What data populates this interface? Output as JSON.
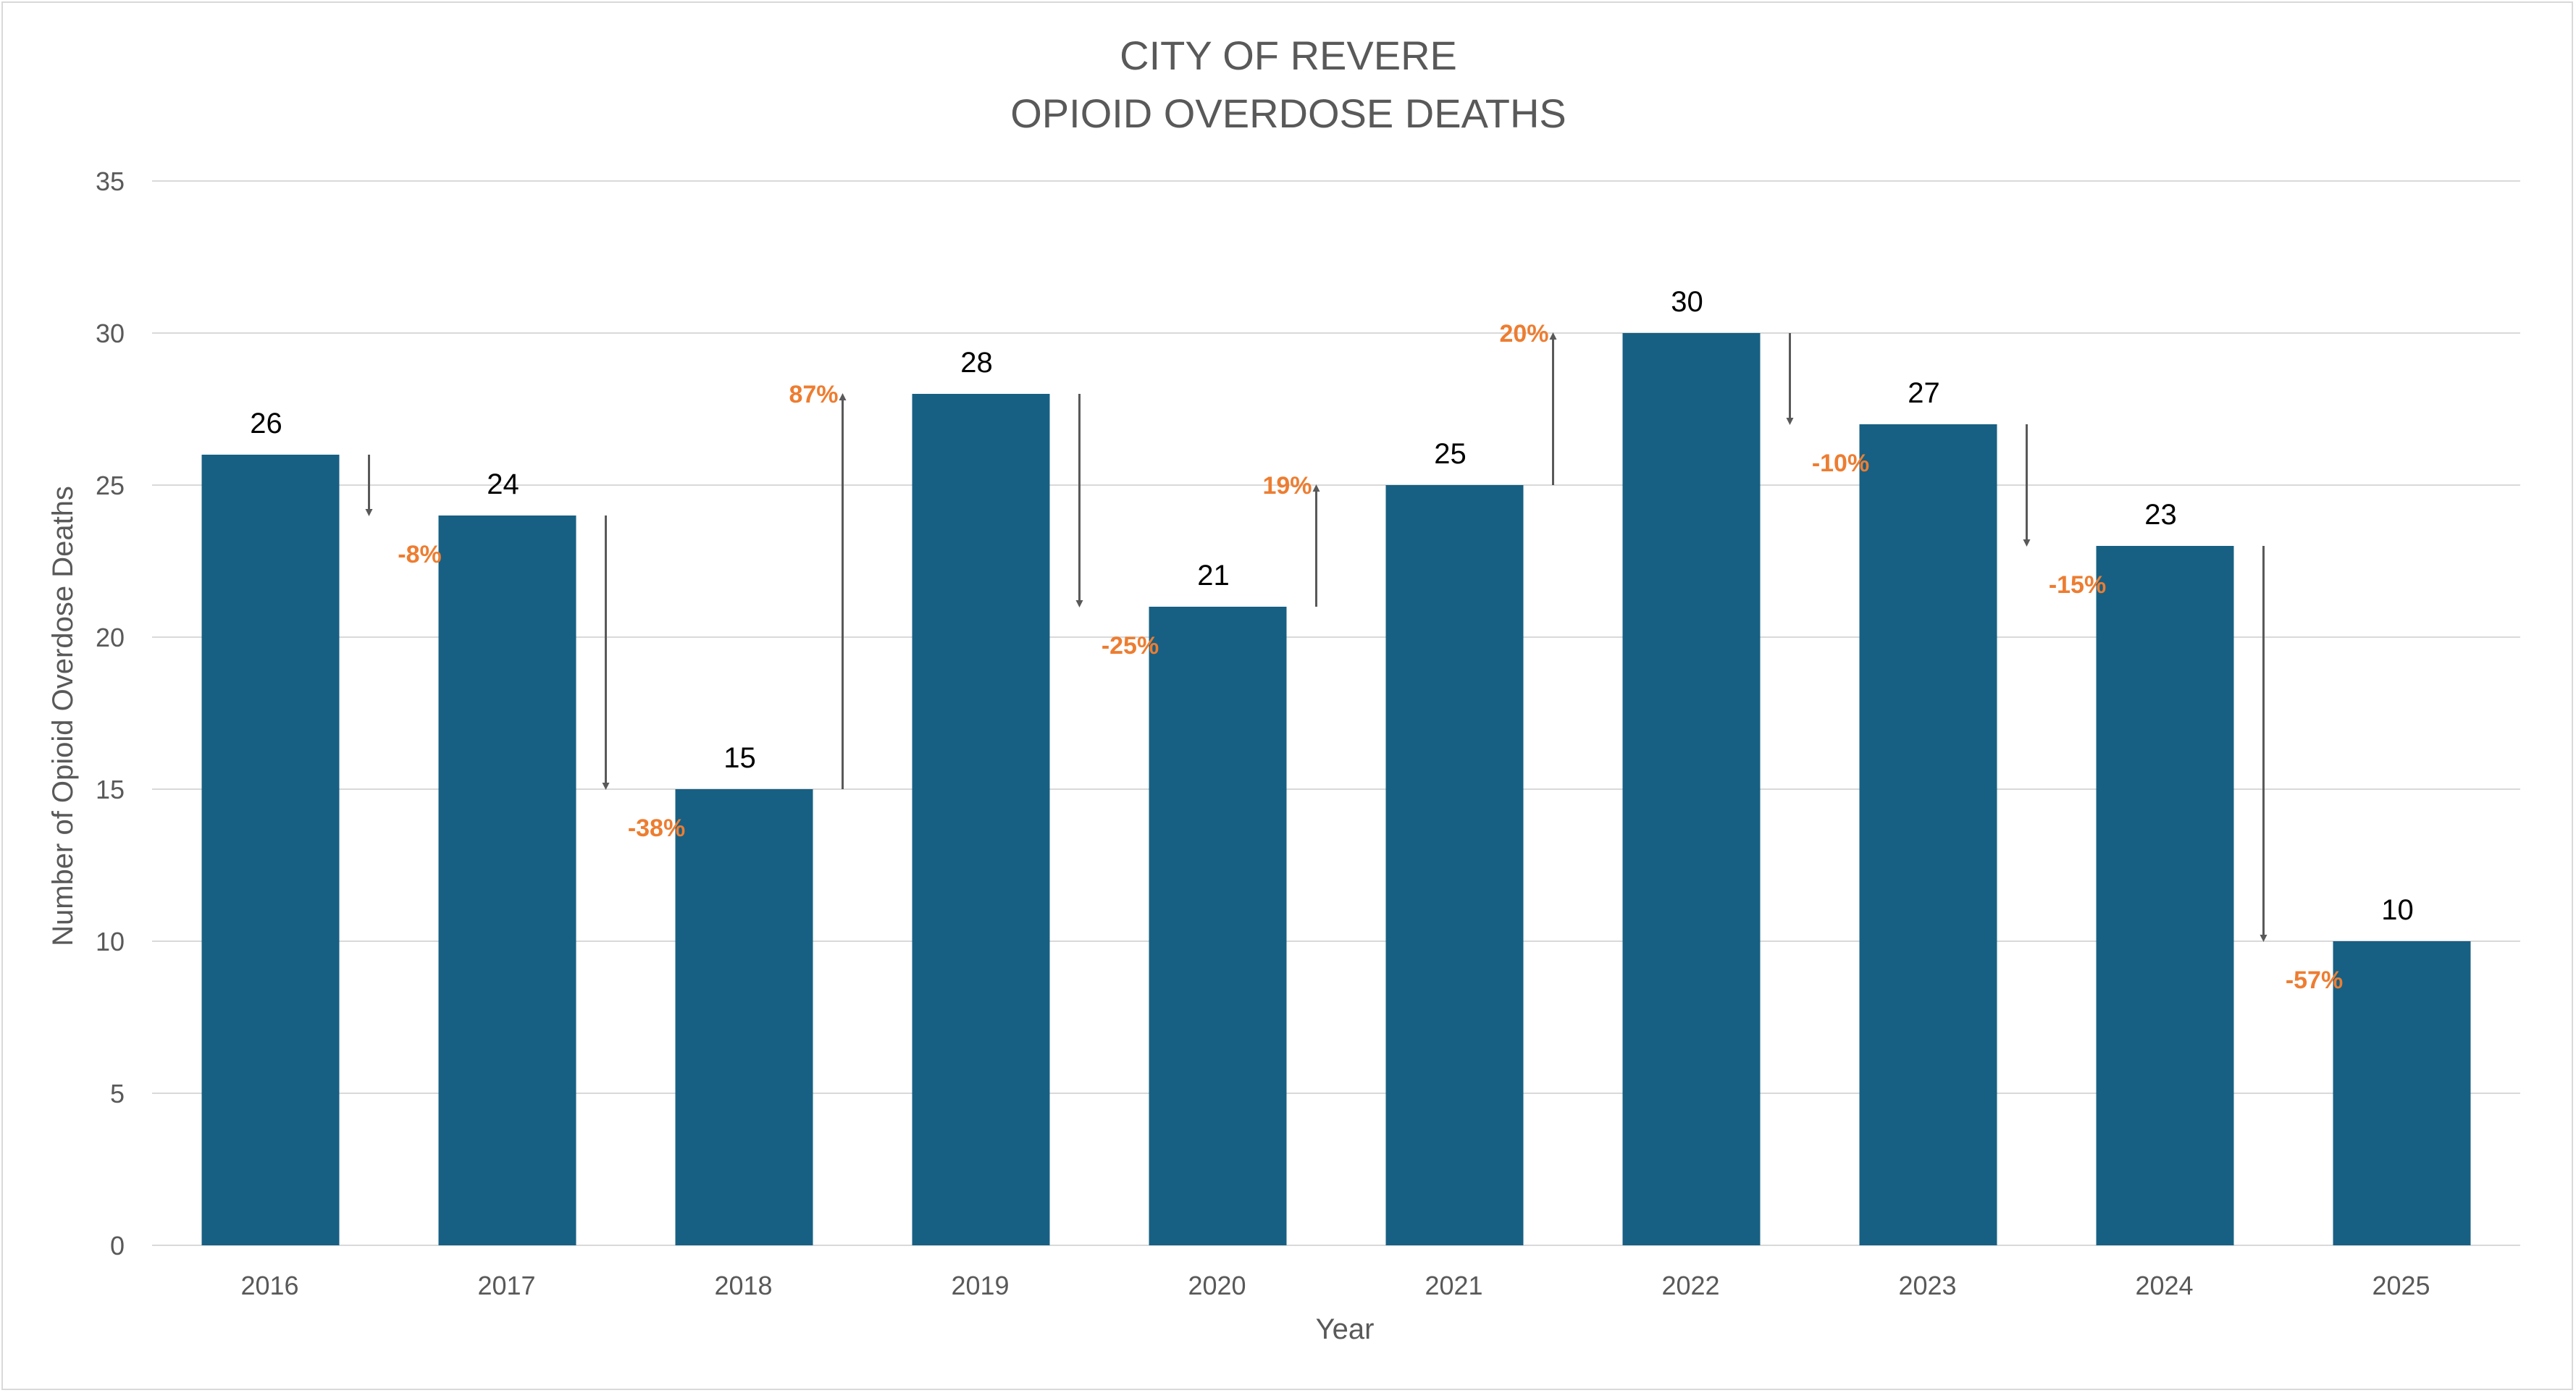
{
  "chart_data": {
    "type": "bar",
    "title": "CITY OF REVERE",
    "subtitle": "OPIOID OVERDOSE DEATHS",
    "xlabel": "Year",
    "ylabel": "Number of Opioid Overdose Deaths",
    "categories": [
      "2016",
      "2017",
      "2018",
      "2019",
      "2020",
      "2021",
      "2022",
      "2023",
      "2024",
      "2025"
    ],
    "values": [
      26,
      24,
      15,
      28,
      21,
      25,
      30,
      27,
      23,
      10
    ],
    "ylim": [
      0,
      35
    ],
    "yticks": [
      0,
      5,
      10,
      15,
      20,
      25,
      30,
      35
    ],
    "grid": true,
    "legend": "none",
    "changes": [
      {
        "from": "2016",
        "to": "2017",
        "label": "-8%"
      },
      {
        "from": "2017",
        "to": "2018",
        "label": "-38%"
      },
      {
        "from": "2018",
        "to": "2019",
        "label": "87%"
      },
      {
        "from": "2019",
        "to": "2020",
        "label": "-25%"
      },
      {
        "from": "2020",
        "to": "2021",
        "label": "19%"
      },
      {
        "from": "2021",
        "to": "2022",
        "label": "20%"
      },
      {
        "from": "2022",
        "to": "2023",
        "label": "-10%"
      },
      {
        "from": "2023",
        "to": "2024",
        "label": "-15%"
      },
      {
        "from": "2024",
        "to": "2025",
        "label": "-57%"
      }
    ],
    "colors": {
      "bar": "#176083",
      "change_label": "#ed7d31",
      "arrow": "#595959",
      "grid": "#d9d9d9",
      "text": "#595959"
    }
  }
}
